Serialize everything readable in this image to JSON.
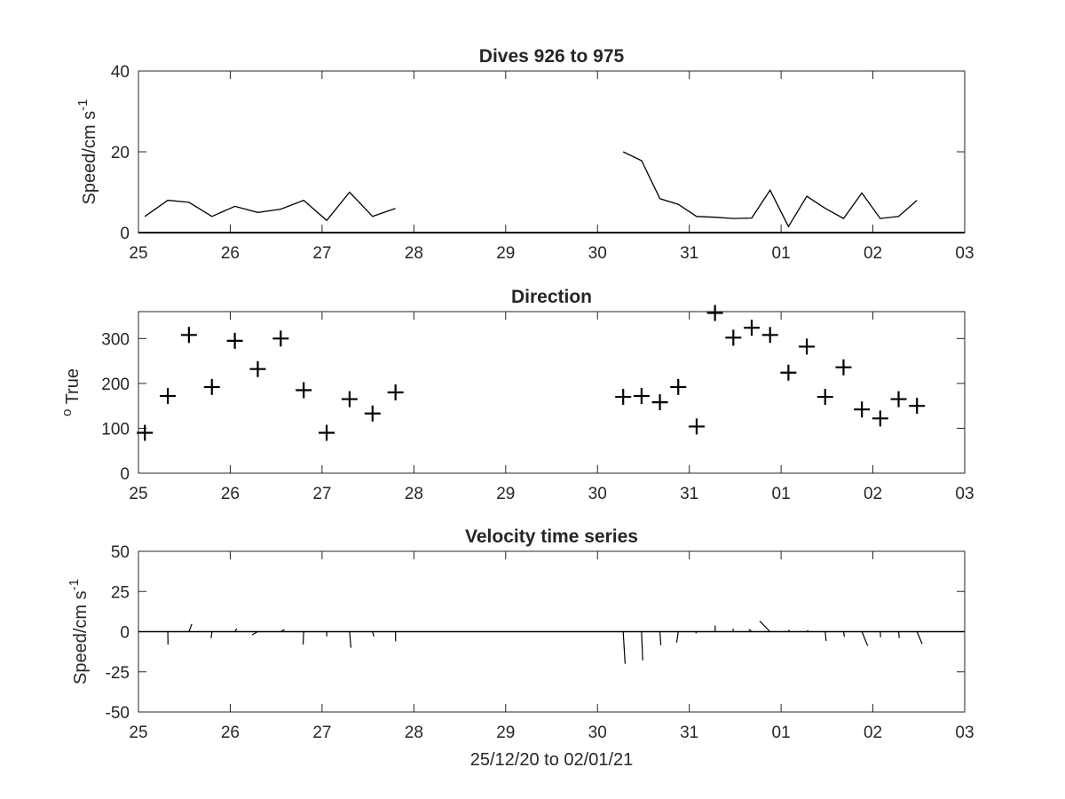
{
  "chart_data": [
    {
      "type": "line",
      "title": "Dives 926 to 975",
      "ylabel": "Speed/cm s",
      "ylabel_sup": "-1",
      "xlabel": "",
      "x_tick_labels": [
        "25",
        "26",
        "27",
        "28",
        "29",
        "30",
        "31",
        "01",
        "02",
        "03"
      ],
      "y_ticks": [
        0,
        20,
        40
      ],
      "ylim": [
        0,
        40
      ],
      "xlim": [
        0,
        9
      ],
      "x_units": "days since 25/12/20 00:00",
      "grid": false,
      "series": [
        {
          "segments": [
            [
              [
                0.07,
                4
              ],
              [
                0.32,
                8
              ],
              [
                0.55,
                7.5
              ],
              [
                0.8,
                4
              ],
              [
                1.05,
                6.5
              ],
              [
                1.3,
                5
              ],
              [
                1.55,
                5.8
              ],
              [
                1.8,
                8
              ],
              [
                2.05,
                3
              ],
              [
                2.3,
                10
              ],
              [
                2.55,
                4
              ],
              [
                2.8,
                6
              ]
            ],
            [
              [
                5.28,
                20
              ],
              [
                5.48,
                17.8
              ],
              [
                5.68,
                8.4
              ],
              [
                5.88,
                7
              ],
              [
                6.08,
                4
              ],
              [
                6.28,
                3.8
              ],
              [
                6.48,
                3.5
              ],
              [
                6.68,
                3.6
              ],
              [
                6.88,
                10.5
              ],
              [
                7.08,
                1.5
              ],
              [
                7.28,
                9
              ],
              [
                7.48,
                6
              ],
              [
                7.68,
                3.5
              ],
              [
                7.88,
                9.8
              ],
              [
                8.08,
                3.5
              ],
              [
                8.28,
                4
              ],
              [
                8.48,
                8
              ]
            ]
          ]
        }
      ]
    },
    {
      "type": "scatter",
      "title": "Direction",
      "ylabel": "True",
      "ylabel_sup": "o",
      "xlabel": "",
      "x_tick_labels": [
        "25",
        "26",
        "27",
        "28",
        "29",
        "30",
        "31",
        "01",
        "02",
        "03"
      ],
      "y_ticks": [
        0,
        100,
        200,
        300
      ],
      "ylim": [
        0,
        360
      ],
      "xlim": [
        0,
        9
      ],
      "grid": false,
      "marker": "+",
      "points": [
        [
          0.07,
          90
        ],
        [
          0.32,
          172
        ],
        [
          0.55,
          308
        ],
        [
          0.8,
          192
        ],
        [
          1.05,
          295
        ],
        [
          1.3,
          232
        ],
        [
          1.55,
          300
        ],
        [
          1.8,
          185
        ],
        [
          2.05,
          90
        ],
        [
          2.3,
          165
        ],
        [
          2.55,
          133
        ],
        [
          2.8,
          180
        ],
        [
          5.28,
          170
        ],
        [
          5.48,
          172
        ],
        [
          5.68,
          158
        ],
        [
          5.88,
          192
        ],
        [
          6.08,
          104
        ],
        [
          6.28,
          357
        ],
        [
          6.48,
          302
        ],
        [
          6.68,
          324
        ],
        [
          6.88,
          308
        ],
        [
          7.08,
          224
        ],
        [
          7.28,
          282
        ],
        [
          7.48,
          170
        ],
        [
          7.68,
          236
        ],
        [
          7.88,
          142
        ],
        [
          8.08,
          122
        ],
        [
          8.28,
          165
        ],
        [
          8.48,
          150
        ]
      ]
    },
    {
      "type": "line",
      "title": "Velocity time series",
      "ylabel": "Speed/cm s",
      "ylabel_sup": "-1",
      "xlabel": "25/12/20 to 02/01/21",
      "x_tick_labels": [
        "25",
        "26",
        "27",
        "28",
        "29",
        "30",
        "31",
        "01",
        "02",
        "03"
      ],
      "y_ticks": [
        -50,
        -25,
        0,
        25,
        50
      ],
      "ylim": [
        -50,
        50
      ],
      "xlim": [
        0,
        9
      ],
      "grid": false,
      "style": "stick vectors (u, v) from baseline",
      "vectors": [
        [
          0.32,
          0.1,
          -8
        ],
        [
          0.55,
          1.8,
          4.8
        ],
        [
          0.8,
          -0.5,
          -4
        ],
        [
          1.05,
          1.2,
          2
        ],
        [
          1.3,
          -3.6,
          -2
        ],
        [
          1.55,
          2.3,
          1.3
        ],
        [
          1.8,
          -0.4,
          -8
        ],
        [
          2.05,
          0.1,
          -3
        ],
        [
          2.3,
          0.8,
          -10
        ],
        [
          2.55,
          0.8,
          -3
        ],
        [
          2.8,
          0.1,
          -6
        ],
        [
          5.28,
          1.2,
          -20
        ],
        [
          5.48,
          0.7,
          -17.8
        ],
        [
          5.68,
          0.6,
          -8.4
        ],
        [
          5.88,
          -1,
          -6.8
        ],
        [
          6.08,
          -0.6,
          -1
        ],
        [
          6.28,
          0.2,
          3.8
        ],
        [
          6.48,
          -0.2,
          1.8
        ],
        [
          6.68,
          -1.8,
          1.5
        ],
        [
          6.88,
          -6.5,
          6.6
        ],
        [
          7.08,
          0.5,
          1.2
        ],
        [
          7.28,
          0.9,
          0.9
        ],
        [
          7.48,
          0.6,
          -5.8
        ],
        [
          7.68,
          0.6,
          -3.2
        ],
        [
          7.88,
          3.6,
          -8.8
        ],
        [
          8.08,
          0.2,
          -3.5
        ],
        [
          8.28,
          0.4,
          -4
        ],
        [
          8.48,
          3.2,
          -7.6
        ]
      ]
    }
  ]
}
